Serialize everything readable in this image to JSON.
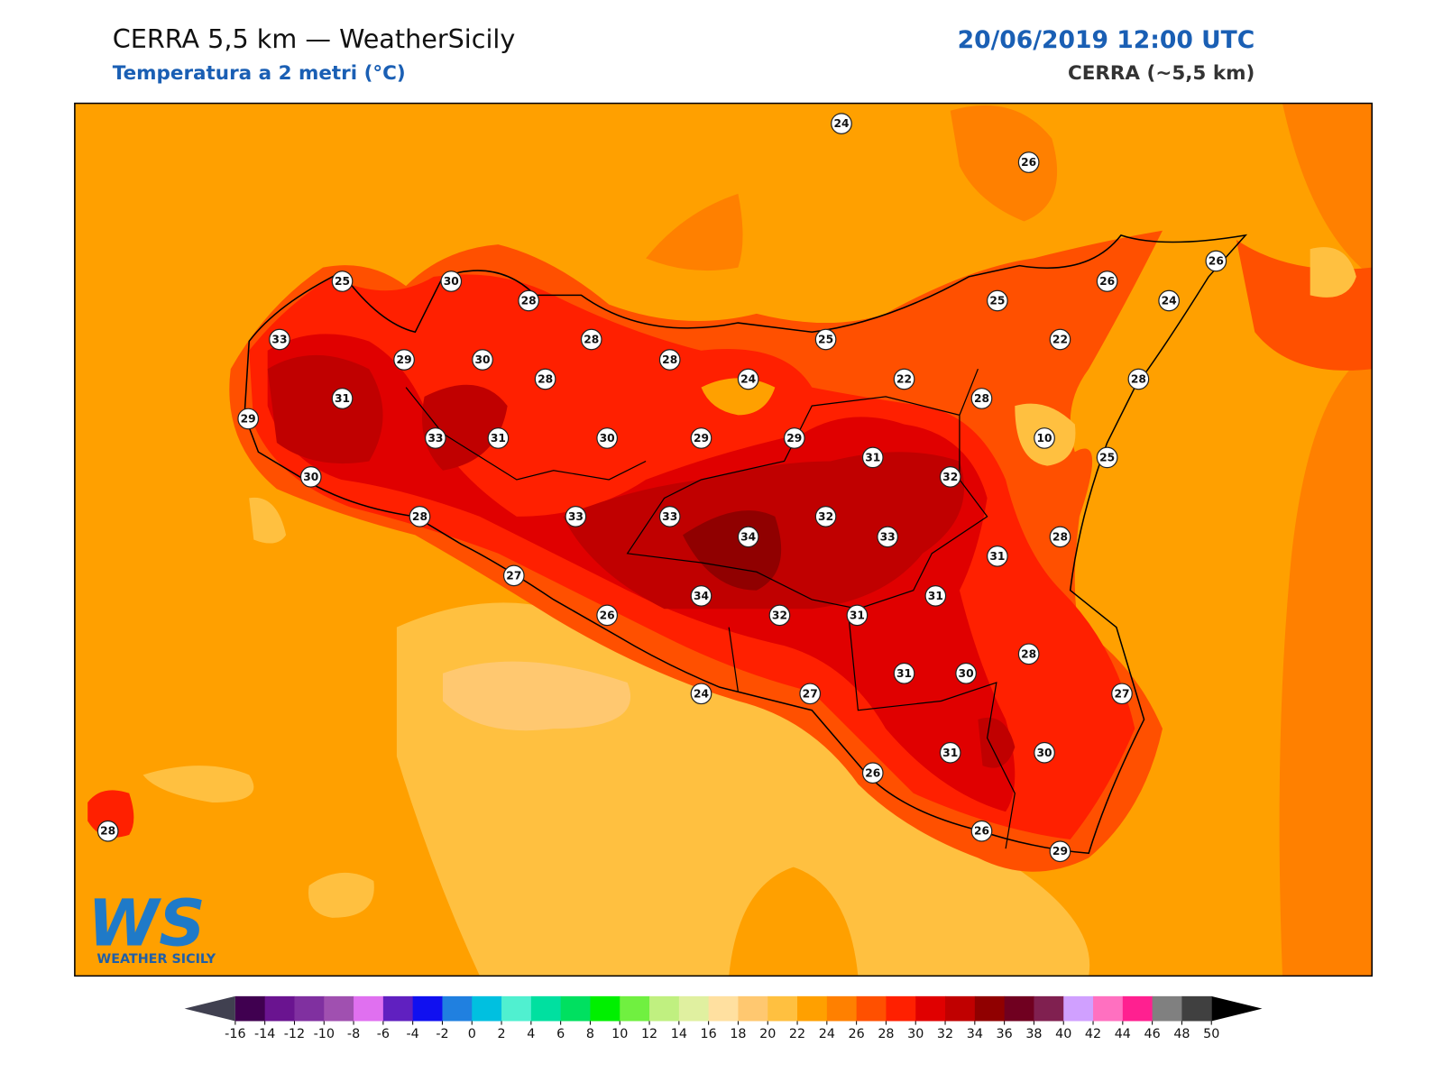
{
  "header": {
    "title": "CERRA 5,5 km — WeatherSicily",
    "subtitle": "Temperatura a 2 metri (°C)",
    "datetime": "20/06/2019 12:00 UTC",
    "model": "CERRA (~5,5 km)"
  },
  "logo": {
    "mark": "WS",
    "name": "WEATHER SICILY"
  },
  "stations": [
    24,
    26,
    25,
    30,
    28,
    26,
    26,
    25,
    24,
    33,
    29,
    30,
    28,
    28,
    25,
    22,
    28,
    24,
    22,
    28,
    31,
    28,
    29,
    33,
    31,
    30,
    29,
    29,
    10,
    31,
    25,
    30,
    32,
    28,
    33,
    33,
    32,
    34,
    33,
    28,
    31,
    27,
    34,
    31,
    26,
    32,
    31,
    28,
    31,
    30,
    27,
    24,
    27,
    31,
    30,
    26,
    28,
    26,
    29
  ],
  "colorbar": {
    "ticks": [
      -16,
      -14,
      -12,
      -10,
      -8,
      -6,
      -4,
      -2,
      0,
      2,
      4,
      6,
      8,
      10,
      12,
      14,
      16,
      18,
      20,
      22,
      24,
      26,
      28,
      30,
      32,
      34,
      36,
      38,
      40,
      42,
      44,
      46,
      48,
      50
    ],
    "colors": [
      "#400050",
      "#6a1490",
      "#8030a0",
      "#a050b0",
      "#e070f0",
      "#6020c0",
      "#1010f0",
      "#2080e0",
      "#00c0e0",
      "#50f0d0",
      "#00e0a0",
      "#00e060",
      "#00f000",
      "#70f040",
      "#c0f080",
      "#e0f0a0",
      "#ffe0a0",
      "#ffc870",
      "#ffc040",
      "#ffa000",
      "#ff8000",
      "#ff5000",
      "#ff2000",
      "#e00000",
      "#c00000",
      "#900000",
      "#700020",
      "#802050",
      "#d0a0ff",
      "#ff70c0",
      "#ff2090",
      "#808080",
      "#404040"
    ],
    "under_color": "#404050",
    "over_color": "#000000"
  }
}
